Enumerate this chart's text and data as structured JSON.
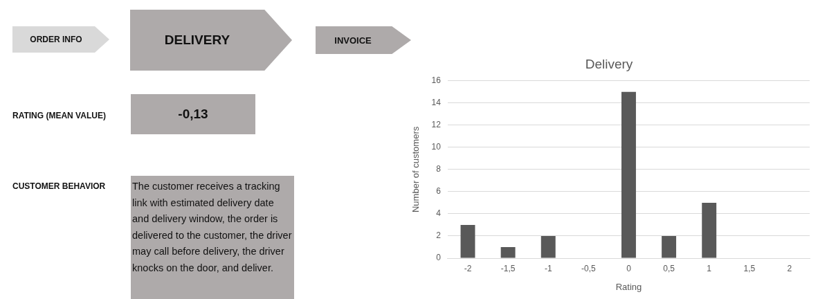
{
  "chart_data": [
    {
      "type": "other",
      "annotations": [
        "ORDER INFO",
        "DELIVERY",
        "INVOICE",
        "RATING (MEAN VALUE)",
        "-0,13",
        "CUSTOMER BEHAVIOR",
        "The customer receives a tracking link with estimated delivery date and delivery window, the order is delivered to the customer, the driver may call before delivery, the driver knocks on the door, and deliver."
      ]
    },
    {
      "type": "bar",
      "title": "Delivery",
      "xlabel": "Rating",
      "ylabel": "Number of customers",
      "categories": [
        "-2",
        "-1,5",
        "-1",
        "-0,5",
        "0",
        "0,5",
        "1",
        "1,5",
        "2"
      ],
      "values": [
        3,
        1,
        2,
        0,
        15,
        2,
        5,
        0,
        0
      ],
      "color": "#595959",
      "ylim": [
        0,
        16
      ],
      "yticks": [
        0,
        2,
        4,
        6,
        8,
        10,
        12,
        14,
        16
      ],
      "grid": "y",
      "legend": false
    }
  ]
}
